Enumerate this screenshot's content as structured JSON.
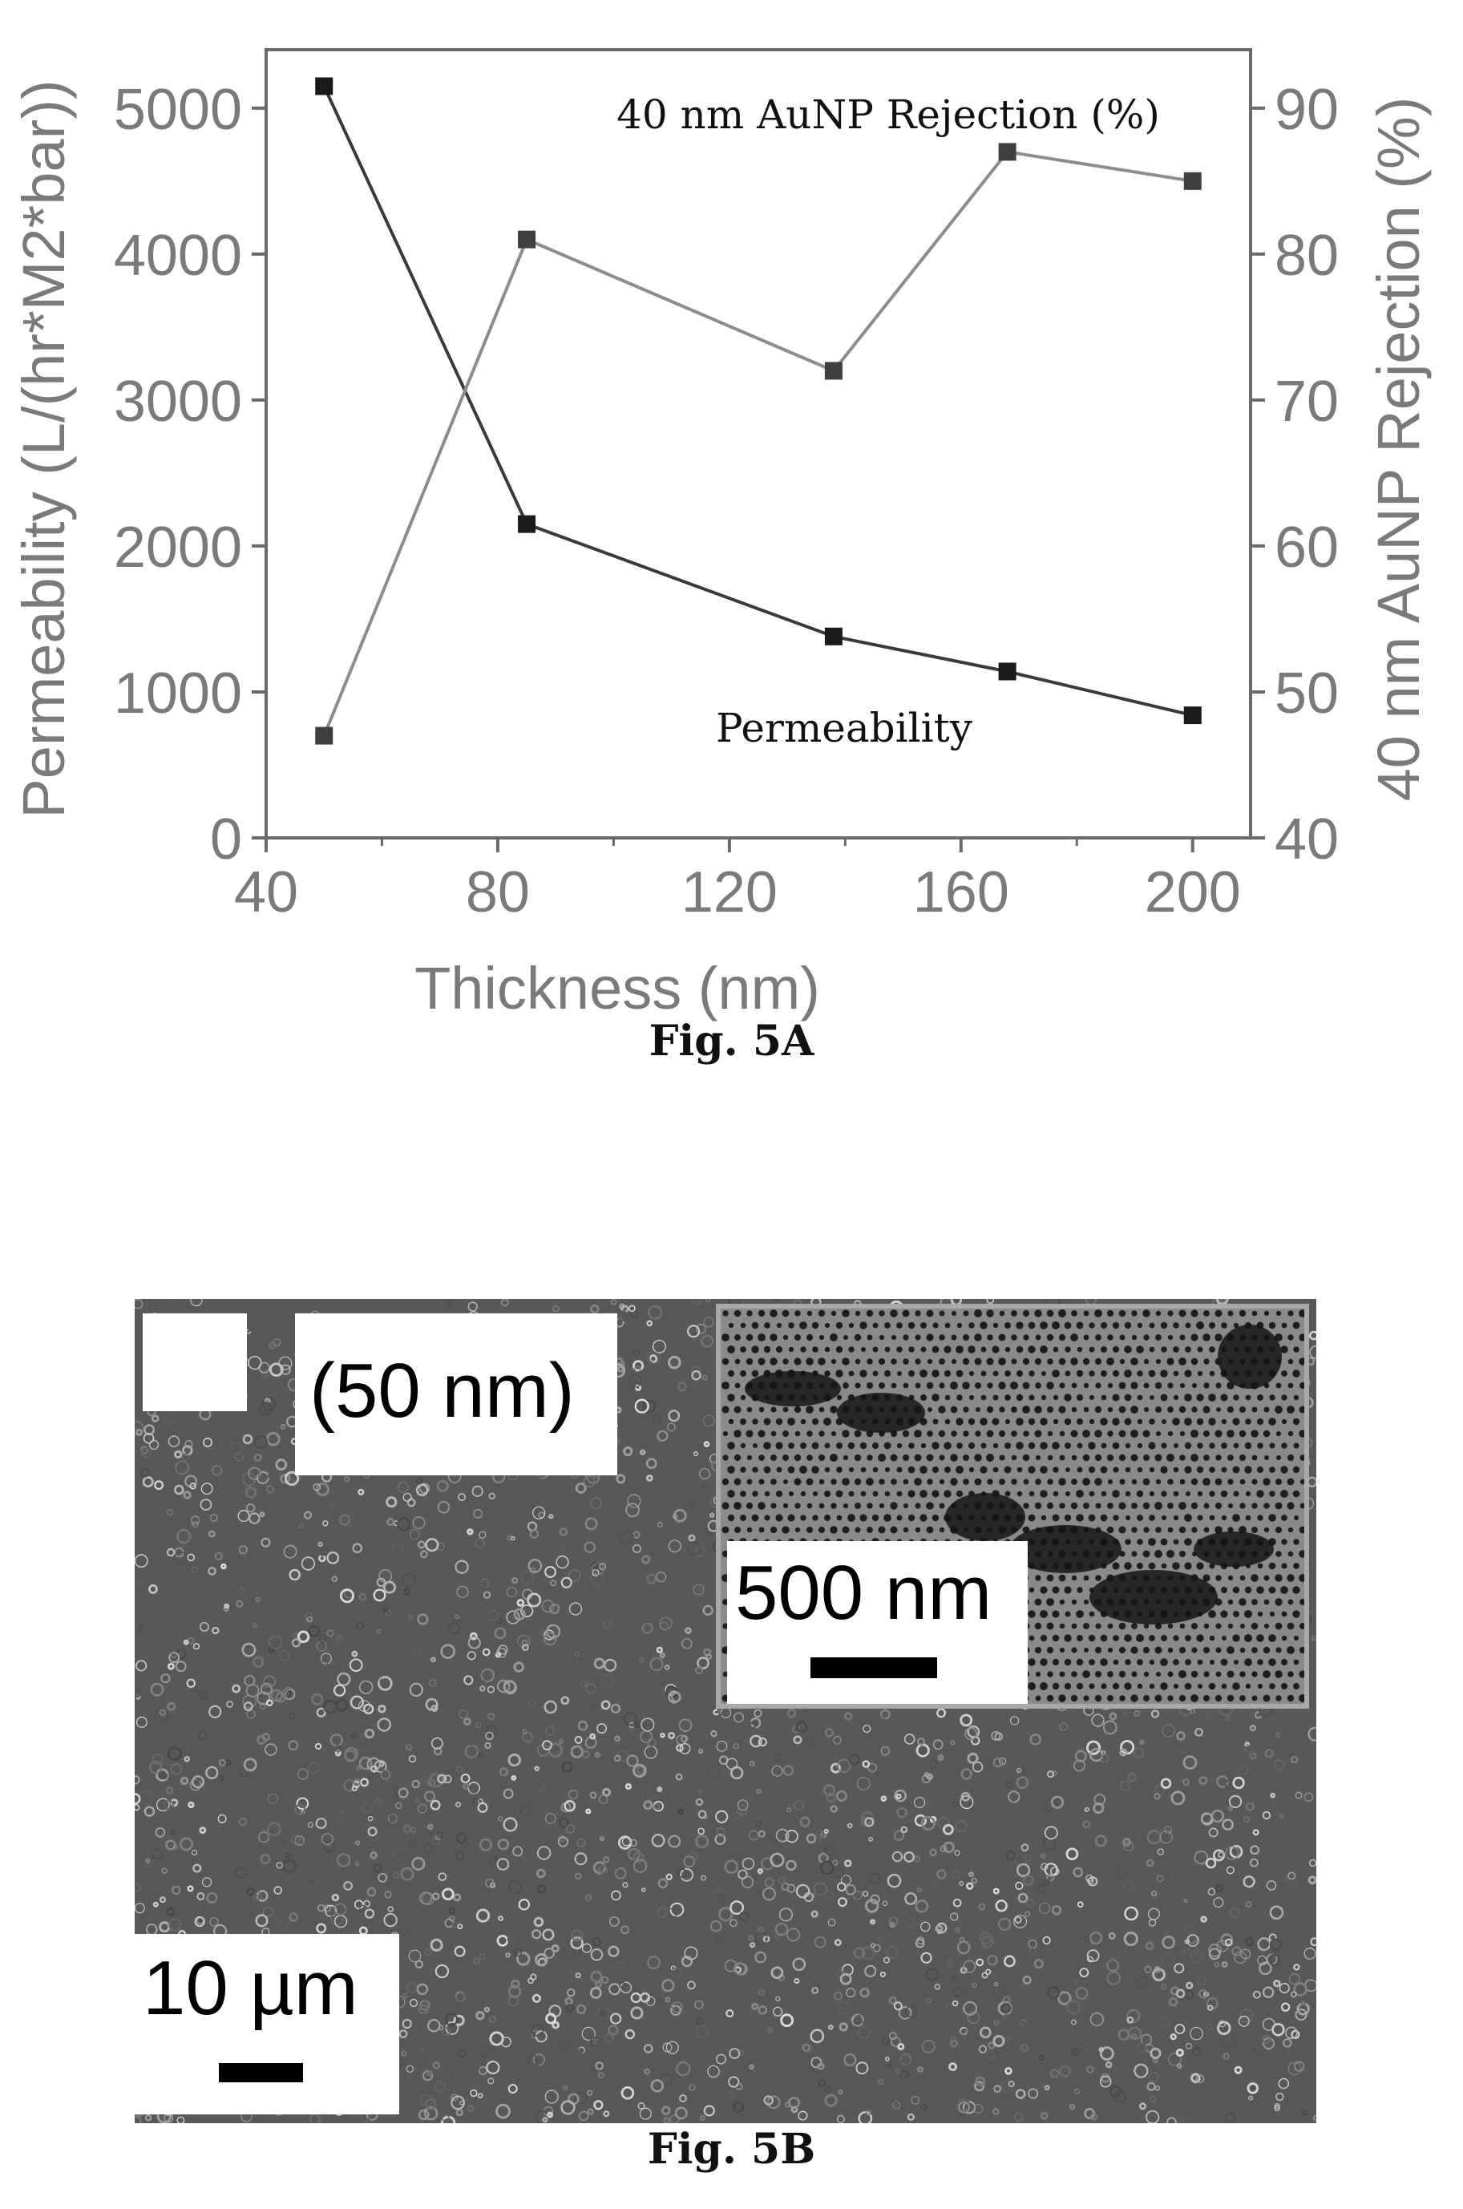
{
  "chart_data": {
    "type": "line",
    "xlabel": "Thickness (nm)",
    "ylabel_left": "Permeability (L/(hr*M2*bar))",
    "ylabel_right": "40 nm AuNP Rejection (%)",
    "xlim": [
      40,
      210
    ],
    "ylim_left": [
      0,
      5400
    ],
    "ylim_right": [
      40,
      94
    ],
    "x_ticks": [
      40,
      80,
      120,
      160,
      200
    ],
    "y_left_ticks": [
      0,
      1000,
      2000,
      3000,
      4000,
      5000
    ],
    "y_right_ticks": [
      40,
      50,
      60,
      70,
      80,
      90
    ],
    "series": [
      {
        "name": "Permeability",
        "axis": "left",
        "color": "#3a3a3a",
        "x": [
          50,
          85,
          138,
          168,
          200
        ],
        "values": [
          5150,
          2150,
          1380,
          1140,
          840
        ]
      },
      {
        "name": "40 nm AuNP Rejection (%)",
        "axis": "right",
        "color": "#8c8c8c",
        "x": [
          50,
          85,
          138,
          168,
          200
        ],
        "values": [
          47,
          81,
          72,
          87,
          85
        ]
      }
    ],
    "annotations": [
      "40 nm AuNP Rejection (%)",
      "Permeability"
    ]
  },
  "captions": {
    "fig_a": "Fig. 5A",
    "fig_b": "Fig. 5B"
  },
  "sem": {
    "label_thickness": "(50 nm)",
    "inset_scale": "500 nm",
    "main_scale": "10 µm"
  }
}
